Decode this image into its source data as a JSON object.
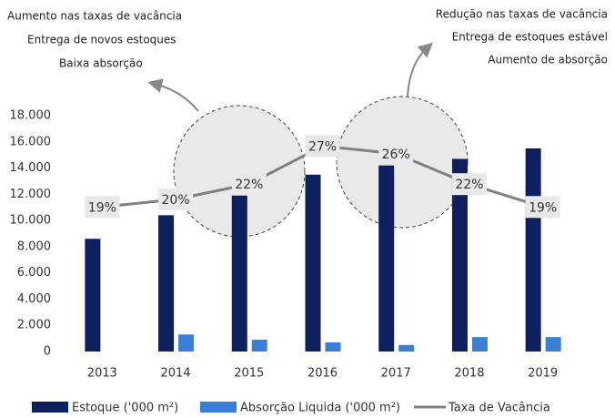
{
  "chart_data": {
    "type": "bar",
    "annotations_left": [
      "Aumento nas taxas de vacância",
      "Entrega de novos estoques",
      "Baixa absorção"
    ],
    "annotations_right": [
      "Redução nas taxas de vacância",
      "Entrega de estoques estável",
      "Aumento de absorção"
    ],
    "categories": [
      "2013",
      "2014",
      "2015",
      "2016",
      "2017",
      "2018",
      "2019"
    ],
    "series": [
      {
        "name": "Estoque ('000 m²)",
        "color": "#0d1f5c",
        "values": [
          8600,
          10400,
          11900,
          13500,
          14200,
          14700,
          15500
        ]
      },
      {
        "name": "Absorção Liquida ('000 m²)",
        "color": "#3a7fd5",
        "values": [
          0,
          1300,
          900,
          700,
          500,
          1100,
          1100
        ]
      },
      {
        "name": "Taxa de Vacância",
        "color": "#808080",
        "type": "line",
        "axis": "y2",
        "values": [
          19,
          20,
          22,
          27,
          26,
          22,
          19
        ],
        "value_labels": [
          "19%",
          "20%",
          "22%",
          "27%",
          "26%",
          "22%",
          "19%"
        ]
      }
    ],
    "ylim": [
      0,
      18000
    ],
    "yticks": [
      0,
      {
        "value": 2000,
        "label": "2.000"
      },
      {
        "value": 4000,
        "label": "4.000"
      },
      {
        "value": 6000,
        "label": "6.000"
      },
      {
        "value": 8000,
        "label": "8.000"
      },
      {
        "value": 10000,
        "label": "10.000"
      },
      {
        "value": 12000,
        "label": "12.000"
      },
      {
        "value": 14000,
        "label": "14.000"
      },
      {
        "value": 16000,
        "label": "16.000"
      },
      {
        "value": 18000,
        "label": "18.000"
      }
    ],
    "y2lim": [
      0,
      31
    ],
    "grid": false,
    "legend": "bottom"
  }
}
